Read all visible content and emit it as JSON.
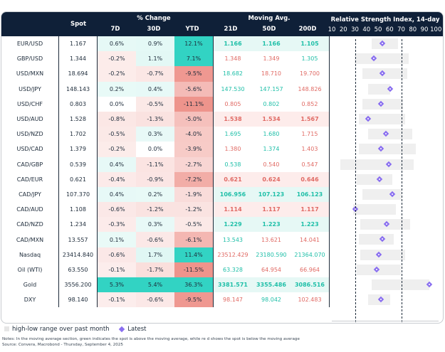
{
  "header": {
    "spot": "Spot",
    "pct_change": "% Change",
    "pct_cols": [
      "7D",
      "30D",
      "YTD"
    ],
    "moving_avg": "Moving Avg.",
    "ma_cols": [
      "21D",
      "50D",
      "200D"
    ],
    "rsi_title": "Relative Strength Index, 14-day",
    "rsi_ticks": [
      "10",
      "20",
      "30",
      "40",
      "50",
      "60",
      "70",
      "80",
      "90",
      "100"
    ]
  },
  "colors": {
    "header_bg": "#0f2038",
    "green_text": "#1fbfa8",
    "red_text": "#e06a64",
    "diamond": "#8a6ff0",
    "range_box": "#efefef"
  },
  "rows": [
    {
      "pair": "EUR/USD",
      "spot": "1.167",
      "d7": "0.6%",
      "d30": "0.9%",
      "ytd": "12.1%",
      "ma21": "1.166",
      "ma50": "1.166",
      "ma200": "1.105",
      "ma_bold": true,
      "ma_bg": "#e6f8f5",
      "ma_colors": [
        "g",
        "g",
        "g"
      ]
    },
    {
      "pair": "GBP/USD",
      "spot": "1.344",
      "d7": "-0.2%",
      "d30": "1.1%",
      "ytd": "7.1%",
      "ma21": "1.348",
      "ma50": "1.349",
      "ma200": "1.305",
      "ma_bold": false,
      "ma_bg": "",
      "ma_colors": [
        "r",
        "r",
        "g"
      ]
    },
    {
      "pair": "USD/MXN",
      "spot": "18.694",
      "d7": "-0.2%",
      "d30": "-0.7%",
      "ytd": "-9.5%",
      "ma21": "18.682",
      "ma50": "18.710",
      "ma200": "19.700",
      "ma_bold": false,
      "ma_bg": "",
      "ma_colors": [
        "g",
        "r",
        "r"
      ]
    },
    {
      "pair": "USD/JPY",
      "spot": "148.143",
      "d7": "0.2%",
      "d30": "0.4%",
      "ytd": "-5.6%",
      "ma21": "147.530",
      "ma50": "147.157",
      "ma200": "148.826",
      "ma_bold": false,
      "ma_bg": "",
      "ma_colors": [
        "g",
        "g",
        "r"
      ]
    },
    {
      "pair": "USD/CHF",
      "spot": "0.803",
      "d7": "0.0%",
      "d30": "-0.5%",
      "ytd": "-11.1%",
      "ma21": "0.805",
      "ma50": "0.802",
      "ma200": "0.852",
      "ma_bold": false,
      "ma_bg": "",
      "ma_colors": [
        "r",
        "g",
        "r"
      ]
    },
    {
      "pair": "USD/AUD",
      "spot": "1.528",
      "d7": "-0.8%",
      "d30": "-1.3%",
      "ytd": "-5.0%",
      "ma21": "1.538",
      "ma50": "1.534",
      "ma200": "1.567",
      "ma_bold": true,
      "ma_bg": "#fdeceb",
      "ma_colors": [
        "r",
        "r",
        "r"
      ]
    },
    {
      "pair": "USD/NZD",
      "spot": "1.702",
      "d7": "-0.5%",
      "d30": "0.3%",
      "ytd": "-4.0%",
      "ma21": "1.695",
      "ma50": "1.680",
      "ma200": "1.715",
      "ma_bold": false,
      "ma_bg": "",
      "ma_colors": [
        "g",
        "g",
        "r"
      ]
    },
    {
      "pair": "USD/CAD",
      "spot": "1.379",
      "d7": "-0.2%",
      "d30": "0.0%",
      "ytd": "-3.9%",
      "ma21": "1.380",
      "ma50": "1.374",
      "ma200": "1.403",
      "ma_bold": false,
      "ma_bg": "",
      "ma_colors": [
        "r",
        "g",
        "r"
      ]
    },
    {
      "pair": "CAD/GBP",
      "spot": "0.539",
      "d7": "0.4%",
      "d30": "-1.1%",
      "ytd": "-2.7%",
      "ma21": "0.538",
      "ma50": "0.540",
      "ma200": "0.547",
      "ma_bold": false,
      "ma_bg": "",
      "ma_colors": [
        "g",
        "r",
        "r"
      ]
    },
    {
      "pair": "CAD/EUR",
      "spot": "0.621",
      "d7": "-0.4%",
      "d30": "-0.9%",
      "ytd": "-7.2%",
      "ma21": "0.621",
      "ma50": "0.624",
      "ma200": "0.646",
      "ma_bold": true,
      "ma_bg": "#fdeceb",
      "ma_colors": [
        "r",
        "r",
        "r"
      ]
    },
    {
      "pair": "CAD/JPY",
      "spot": "107.370",
      "d7": "0.4%",
      "d30": "0.2%",
      "ytd": "-1.9%",
      "ma21": "106.956",
      "ma50": "107.123",
      "ma200": "106.123",
      "ma_bold": true,
      "ma_bg": "#e6f8f5",
      "ma_colors": [
        "g",
        "g",
        "g"
      ]
    },
    {
      "pair": "CAD/AUD",
      "spot": "1.108",
      "d7": "-0.6%",
      "d30": "-1.2%",
      "ytd": "-1.2%",
      "ma21": "1.114",
      "ma50": "1.117",
      "ma200": "1.117",
      "ma_bold": true,
      "ma_bg": "#fdeceb",
      "ma_colors": [
        "r",
        "r",
        "r"
      ]
    },
    {
      "pair": "CAD/NZD",
      "spot": "1.234",
      "d7": "-0.3%",
      "d30": "0.3%",
      "ytd": "-0.5%",
      "ma21": "1.229",
      "ma50": "1.223",
      "ma200": "1.223",
      "ma_bold": true,
      "ma_bg": "#e6f8f5",
      "ma_colors": [
        "g",
        "g",
        "g"
      ]
    },
    {
      "pair": "CAD/MXN",
      "spot": "13.557",
      "d7": "0.1%",
      "d30": "-0.6%",
      "ytd": "-6.1%",
      "ma21": "13.543",
      "ma50": "13.621",
      "ma200": "14.041",
      "ma_bold": false,
      "ma_bg": "",
      "ma_colors": [
        "g",
        "r",
        "r"
      ]
    },
    {
      "pair": "Nasdaq",
      "spot": "23414.840",
      "d7": "-0.6%",
      "d30": "1.7%",
      "ytd": "11.4%",
      "ma21": "23512.429",
      "ma50": "23180.590",
      "ma200": "21364.070",
      "ma_bold": false,
      "ma_bg": "",
      "ma_colors": [
        "r",
        "g",
        "g"
      ]
    },
    {
      "pair": "Oil (WTI)",
      "spot": "63.550",
      "d7": "-0.1%",
      "d30": "-1.7%",
      "ytd": "-11.5%",
      "ma21": "63.328",
      "ma50": "64.954",
      "ma200": "66.964",
      "ma_bold": false,
      "ma_bg": "",
      "ma_colors": [
        "g",
        "r",
        "r"
      ]
    },
    {
      "pair": "Gold",
      "spot": "3556.200",
      "d7": "5.3%",
      "d30": "5.4%",
      "ytd": "36.3%",
      "ma21": "3381.571",
      "ma50": "3355.486",
      "ma200": "3086.516",
      "ma_bold": true,
      "ma_bg": "#e6f8f5",
      "ma_colors": [
        "g",
        "g",
        "g"
      ]
    },
    {
      "pair": "DXY",
      "spot": "98.140",
      "d7": "-0.1%",
      "d30": "-0.6%",
      "ytd": "-9.5%",
      "ma21": "98.147",
      "ma50": "98.042",
      "ma200": "102.483",
      "ma_bold": false,
      "ma_bg": "",
      "ma_colors": [
        "r",
        "g",
        "r"
      ]
    }
  ],
  "chart_data": {
    "type": "range-dot",
    "title": "Relative Strength Index, 14-day",
    "xlim": [
      10,
      100
    ],
    "xticks": [
      10,
      20,
      30,
      40,
      50,
      60,
      70,
      80,
      90,
      100
    ],
    "reference_lines": [
      30,
      70
    ],
    "categories": [
      "EUR/USD",
      "GBP/USD",
      "USD/MXN",
      "USD/JPY",
      "USD/CHF",
      "USD/AUD",
      "USD/NZD",
      "USD/CAD",
      "CAD/GBP",
      "CAD/EUR",
      "CAD/JPY",
      "CAD/AUD",
      "CAD/NZD",
      "CAD/MXN",
      "Nasdaq",
      "Oil (WTI)",
      "Gold",
      "DXY"
    ],
    "series": [
      {
        "name": "high-low range over past month",
        "low": [
          42,
          27,
          34,
          39,
          34,
          31,
          39,
          31,
          15,
          29,
          34,
          26,
          32,
          31,
          32,
          29,
          42,
          39
        ],
        "high": [
          65,
          74,
          73,
          58,
          69,
          71,
          77,
          80,
          78,
          60,
          68,
          63,
          75,
          61,
          71,
          67,
          92,
          58
        ]
      },
      {
        "name": "Latest",
        "values": [
          51,
          44,
          51,
          58,
          50,
          39,
          54,
          50,
          57,
          49,
          60,
          28,
          55,
          51,
          48,
          46,
          92,
          50
        ]
      }
    ],
    "legend": "bottom-left"
  },
  "legend": {
    "range_label": "high-low range over past month",
    "latest_label": "Latest"
  },
  "notes": {
    "line1": "Notes: In the moving average section, green indicates the spot is above the moving average, while re   d shows the spot is below   the moving average",
    "line2": "Source: Convera, Macrobond - Thursday, September 4, 2025"
  }
}
